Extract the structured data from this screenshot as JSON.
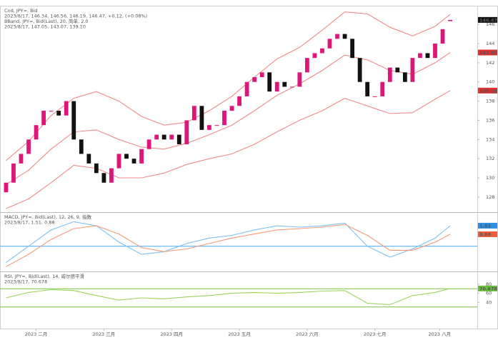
{
  "chart_data": [
    {
      "type": "candlestick",
      "header": [
        {
          "text": "Cnd, JPY=, Bid",
          "color": "#222222"
        },
        {
          "text": "2023/8/17, 146.34, 146.56, 146.19, 146.47, +0.12, (+0.08%)",
          "color": "#3355cc"
        },
        {
          "text": "BBand, JPY=, Bid(Last), 20, 简单, 2.0",
          "color": "#e02020"
        },
        {
          "text": "2023/8/17, 147.05, 143.07, 139.10",
          "color": "#e02020"
        }
      ],
      "open": [
        128.5,
        129.5,
        131.5,
        132.5,
        134,
        135.5,
        137,
        137,
        136.5,
        138,
        134,
        132.5,
        131.5,
        130.5,
        129.5,
        131,
        132.5,
        132,
        131.5,
        133,
        134,
        134.5,
        134,
        134.5,
        133.5,
        136,
        137.5,
        135,
        135.5,
        135.5,
        137,
        137.5,
        138.5,
        140,
        140.5,
        141,
        139,
        140,
        139.5,
        139.5,
        141,
        142.5,
        143,
        143.5,
        144.5,
        145,
        144.5,
        142.5,
        140,
        138.5,
        138.5,
        140,
        141.5,
        141,
        140,
        142.5,
        143,
        142.5,
        144,
        146.34
      ],
      "close": [
        129.5,
        131.5,
        132.5,
        134,
        135.5,
        137,
        137,
        136.5,
        138,
        134,
        132.5,
        131.5,
        130.5,
        129.5,
        131,
        132.5,
        132,
        131.5,
        133,
        134,
        134.5,
        134,
        134.5,
        133.5,
        136,
        137.5,
        135,
        135.5,
        135.5,
        137,
        137.5,
        138.5,
        140,
        140.5,
        141,
        139,
        140,
        139.5,
        139.5,
        141,
        142.5,
        143,
        143.5,
        144.5,
        145,
        144.5,
        142.5,
        140,
        138.5,
        138.5,
        140,
        141.5,
        141,
        140,
        142.5,
        143,
        142.5,
        144,
        145.5,
        146.47
      ],
      "up_color": "#e0157a",
      "down_color": "#111111",
      "series": [
        {
          "x": [
            0,
            3,
            6,
            9,
            12,
            15,
            18,
            21,
            24,
            27,
            30,
            33,
            36,
            39,
            42,
            45,
            48,
            51,
            54,
            57,
            59
          ],
          "values": [
            131.8,
            133.8,
            136.5,
            138.3,
            139,
            138,
            136.4,
            135.5,
            135.8,
            137,
            138.5,
            140.5,
            142.4,
            143.6,
            145.4,
            147.3,
            147.1,
            145.7,
            144.8,
            145.8,
            147.05
          ],
          "color": "#f08a8a"
        },
        {
          "x": [
            0,
            3,
            6,
            9,
            12,
            15,
            18,
            21,
            24,
            27,
            30,
            33,
            36,
            39,
            42,
            45,
            48,
            51,
            54,
            57,
            59
          ],
          "values": [
            129.3,
            130.8,
            133,
            134.8,
            135,
            134,
            133.2,
            133,
            133.6,
            134.5,
            135.5,
            137,
            138.6,
            139.8,
            141.2,
            142.8,
            142.3,
            141.2,
            140.8,
            142,
            143.07
          ],
          "color": "#f08a8a"
        },
        {
          "x": [
            0,
            3,
            6,
            9,
            12,
            15,
            18,
            21,
            24,
            27,
            30,
            33,
            36,
            39,
            42,
            45,
            48,
            51,
            54,
            57,
            59
          ],
          "values": [
            126.8,
            127.8,
            129.5,
            131.3,
            131,
            130,
            130,
            130.5,
            131.4,
            132,
            132.5,
            133.5,
            134.8,
            136,
            137,
            138.3,
            137.5,
            136.7,
            136.8,
            138.2,
            139.1
          ],
          "color": "#f08a8a"
        }
      ],
      "xlim": [
        -0.8,
        62.6
      ],
      "ylim": [
        126.5,
        147.8
      ],
      "yticks": [
        128,
        130,
        132,
        134,
        136,
        138,
        140,
        142,
        144,
        146
      ],
      "price_labels": [
        {
          "value": 146.47,
          "label": "146.47",
          "color": "#111111"
        },
        {
          "value": 143.07,
          "label": "143.07",
          "color": "#e03030"
        },
        {
          "value": 139.1,
          "label": "139.10",
          "color": "#e03030"
        }
      ]
    },
    {
      "type": "line",
      "header": [
        {
          "text": "MACD, JPY=, Bid(Last), 12, 26, 9, 指数",
          "color": "#3355cc"
        },
        {
          "text": "2023/8/17, 1.51, 0.88",
          "color": "#3355cc"
        }
      ],
      "series": [
        {
          "x": [
            0,
            3,
            6,
            9,
            12,
            15,
            18,
            21,
            24,
            27,
            30,
            33,
            36,
            39,
            42,
            45,
            48,
            51,
            54,
            57,
            59
          ],
          "values": [
            -1.2,
            0,
            1.2,
            1.8,
            1.5,
            0.3,
            -0.6,
            -0.4,
            0.2,
            0.6,
            0.8,
            1.2,
            1.5,
            1.4,
            1.5,
            1.7,
            0,
            -0.8,
            -0.2,
            0.6,
            1.51
          ],
          "color": "#7cc0f0"
        },
        {
          "x": [
            0,
            3,
            6,
            9,
            12,
            15,
            18,
            21,
            24,
            27,
            30,
            33,
            36,
            39,
            42,
            45,
            48,
            51,
            54,
            57,
            59
          ],
          "values": [
            -1.5,
            -0.6,
            0.5,
            1.3,
            1.5,
            0.9,
            -0.1,
            -0.4,
            -0.2,
            0.2,
            0.6,
            0.9,
            1.2,
            1.3,
            1.4,
            1.6,
            0.8,
            -0.3,
            -0.3,
            0.3,
            0.88
          ],
          "color": "#f59a7a"
        }
      ],
      "hlines": [
        0
      ],
      "hline_color": "#4aa8e8",
      "xlim": [
        -0.8,
        62.6
      ],
      "ylim": [
        -1.8,
        2.4
      ],
      "price_labels": [
        {
          "value": 1.51,
          "label": "1.51",
          "color": "#2d8fe0"
        },
        {
          "value": 0.88,
          "label": "0.88",
          "color": "#e8603a"
        }
      ]
    },
    {
      "type": "line",
      "header": [
        {
          "text": "RSI, JPY=, Bid(Last), 14, 威尔德平滑",
          "color": "#5aa02a"
        },
        {
          "text": "2023/8/17, 70.678",
          "color": "#5aa02a"
        }
      ],
      "series": [
        {
          "x": [
            0,
            3,
            6,
            9,
            12,
            15,
            18,
            21,
            24,
            27,
            30,
            33,
            36,
            39,
            42,
            45,
            48,
            51,
            54,
            57,
            59
          ],
          "values": [
            50,
            62,
            68,
            66,
            55,
            45,
            50,
            48,
            52,
            55,
            60,
            62,
            60,
            62,
            65,
            66,
            38,
            35,
            55,
            62,
            70.678
          ],
          "color": "#9ad45c"
        }
      ],
      "hlines": [
        30,
        70
      ],
      "hline_color": "#7ac143",
      "xlim": [
        -0.8,
        62.6
      ],
      "ylim": [
        -16,
        105
      ],
      "yticks": [
        40,
        60,
        80
      ],
      "price_labels": [
        {
          "value": 70.678,
          "label": "70.678",
          "color": "#6cbf3a"
        }
      ],
      "xticks": [
        {
          "value": 4,
          "label": "2023 二月"
        },
        {
          "value": 13,
          "label": "2023 三月"
        },
        {
          "value": 22,
          "label": "2023 四月"
        },
        {
          "value": 31,
          "label": "2023 五月"
        },
        {
          "value": 40,
          "label": "2023 六月"
        },
        {
          "value": 49,
          "label": "2023 七月"
        },
        {
          "value": 57.6,
          "label": "2023 八月"
        }
      ]
    }
  ]
}
